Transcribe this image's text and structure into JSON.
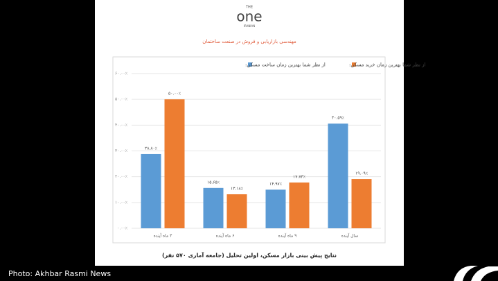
{
  "header": {
    "logo_top": "THE",
    "logo_main": "one",
    "logo_bottom": "IRANIAN",
    "tagline": "مهندسی بازاریابی و فروش در صنعت ساختمان"
  },
  "chart_data": {
    "type": "bar",
    "categories": [
      "۳ ماه آینده",
      "۶ ماه آینده",
      "۹ ماه آینده",
      "سال آینده"
    ],
    "series": [
      {
        "name": "از نظر شما بهترین زمان ساخت مسکن:",
        "color": "#5b9bd5",
        "values": [
          28.8,
          15.65,
          14.97,
          40.59
        ],
        "value_labels": [
          "۲۸.۸۰٪",
          "۱۵.۶۵٪",
          "۱۴.۹۷٪",
          "۴۰.۵۹٪"
        ]
      },
      {
        "name": "از نظر شما بهترین زمان خرید مسکن:",
        "color": "#ed7d31",
        "values": [
          50,
          13.18,
          17.73,
          19.09
        ],
        "value_labels": [
          "۵۰.۰۰٪",
          "۱۳.۱۸٪",
          "۱۷.۷۳٪",
          "۱۹.۰۹٪"
        ]
      }
    ],
    "ylim": [
      0,
      60
    ],
    "yticks": [
      {
        "value": 0,
        "label": "۰.۰۰٪"
      },
      {
        "value": 10,
        "label": "۱۰.۰۰٪"
      },
      {
        "value": 20,
        "label": "۲۰.۰۰٪"
      },
      {
        "value": 30,
        "label": "۳۰.۰۰٪"
      },
      {
        "value": 40,
        "label": "۴۰.۰۰٪"
      },
      {
        "value": 50,
        "label": "۵۰.۰۰٪"
      },
      {
        "value": 60,
        "label": "۶۰.۰۰٪"
      }
    ],
    "grid": true,
    "caption": "نتایج پیش بینی بازار مسکن، اولین تحلیل (جامعه آماری ۵۷۰ نفر)"
  },
  "credit": "Photo: Akhbar Rasmi News"
}
